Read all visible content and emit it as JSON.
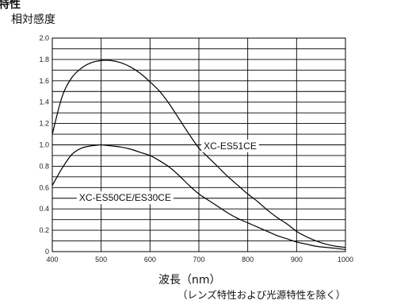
{
  "top_fragment": "特性",
  "chart_data": {
    "type": "line",
    "ylabel": "相対感度",
    "xlabel": "波長（nm）",
    "note": "（レンズ特性および光源特性を除く）",
    "xlim": [
      400,
      1000
    ],
    "ylim": [
      0,
      2.0
    ],
    "x_ticks": [
      "400",
      "500",
      "600",
      "700",
      "800",
      "900",
      "1000"
    ],
    "y_ticks": [
      "0",
      "0.2",
      "0.4",
      "0.6",
      "0.8",
      "1.0",
      "1.2",
      "1.4",
      "1.6",
      "1.8",
      "2.0"
    ],
    "grid": true,
    "series": [
      {
        "name": "XC-ES51CE",
        "x": [
          400,
          420,
          440,
          460,
          480,
          500,
          520,
          540,
          560,
          580,
          600,
          620,
          640,
          660,
          680,
          700,
          720,
          740,
          760,
          780,
          800,
          820,
          840,
          860,
          880,
          900,
          920,
          940,
          960,
          980,
          1000
        ],
        "y": [
          1.1,
          1.45,
          1.63,
          1.72,
          1.77,
          1.79,
          1.79,
          1.77,
          1.73,
          1.67,
          1.59,
          1.5,
          1.38,
          1.24,
          1.1,
          0.97,
          0.88,
          0.79,
          0.7,
          0.62,
          0.54,
          0.47,
          0.39,
          0.32,
          0.26,
          0.19,
          0.14,
          0.1,
          0.07,
          0.05,
          0.04
        ]
      },
      {
        "name": "XC-ES50CE/ES30CE",
        "x": [
          400,
          420,
          440,
          460,
          480,
          500,
          520,
          540,
          560,
          580,
          600,
          620,
          640,
          660,
          680,
          700,
          720,
          740,
          760,
          780,
          800,
          820,
          840,
          860,
          880,
          900,
          920,
          940,
          960,
          980,
          1000
        ],
        "y": [
          0.62,
          0.78,
          0.91,
          0.97,
          0.99,
          1.0,
          0.99,
          0.98,
          0.96,
          0.93,
          0.9,
          0.85,
          0.79,
          0.71,
          0.62,
          0.54,
          0.48,
          0.42,
          0.36,
          0.31,
          0.27,
          0.23,
          0.19,
          0.15,
          0.12,
          0.09,
          0.07,
          0.05,
          0.04,
          0.03,
          0.02
        ]
      }
    ]
  }
}
